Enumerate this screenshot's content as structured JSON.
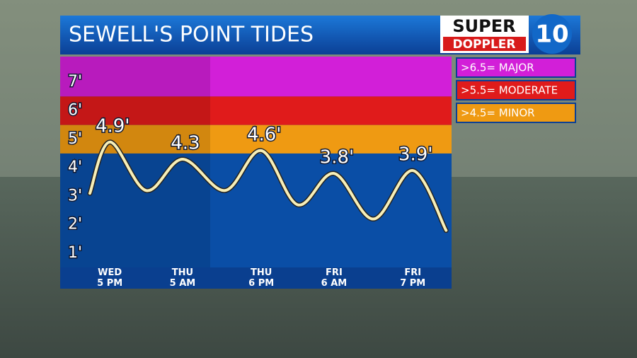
{
  "chart_data": {
    "type": "line",
    "title": "SEWELL'S POINT TIDES",
    "x": [
      -3.3,
      0,
      6,
      12,
      19,
      25,
      31,
      37,
      43.5,
      50,
      55.5
    ],
    "xlim": [
      -8.2,
      56.4
    ],
    "xticks": [
      {
        "value": 0,
        "label": "WED 5 PM"
      },
      {
        "value": 12,
        "label": "THU 5 AM"
      },
      {
        "value": 25,
        "label": "THU 6 PM"
      },
      {
        "value": 37,
        "label": "FRI 6 AM"
      },
      {
        "value": 50,
        "label": "FRI 7 PM"
      }
    ],
    "series": [
      {
        "color": "#f7efb8",
        "values": [
          3.1,
          4.9,
          3.2,
          4.3,
          3.2,
          4.6,
          2.7,
          3.8,
          2.2,
          3.9,
          1.8
        ],
        "value_labels": [
          null,
          "4.9'",
          null,
          "4.3",
          null,
          "4.6'",
          null,
          "3.8'",
          null,
          "3.9'",
          null
        ]
      }
    ],
    "ylim": [
      0.5,
      7.9
    ],
    "yticks": [
      {
        "value": 1,
        "label": "1'"
      },
      {
        "value": 2,
        "label": "2'"
      },
      {
        "value": 3,
        "label": "3'"
      },
      {
        "value": 4,
        "label": "4'"
      },
      {
        "value": 5,
        "label": "5'"
      },
      {
        "value": 6,
        "label": "6'"
      },
      {
        "value": 7,
        "label": "7'"
      }
    ],
    "below_color": "#0a4ea6",
    "thresholds": [
      {
        "value": 6.5,
        "label": ">6.5= MAJOR",
        "color": "#d21fd8"
      },
      {
        "value": 5.5,
        "label": ">5.5= MODERATE",
        "color": "#e01b1b"
      },
      {
        "value": 4.5,
        "label": ">4.5= MINOR",
        "color": "#ef9a12"
      }
    ]
  },
  "logo": {
    "top": "SUPER",
    "bottom": "DOPPLER",
    "number": "10"
  }
}
